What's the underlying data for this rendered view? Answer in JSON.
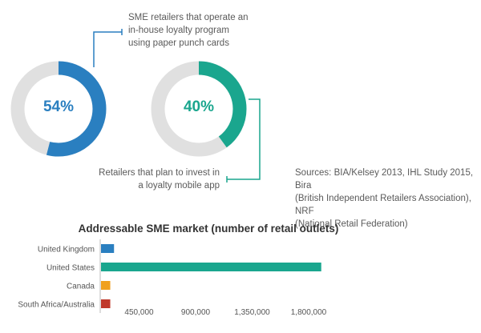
{
  "donuts": [
    {
      "value": 54,
      "label": "54%",
      "color": "#2a7fc0",
      "text_color": "#2a7fc0",
      "caption_lines": [
        "SME retailers that operate an",
        "in-house loyalty program",
        "using paper punch cards"
      ]
    },
    {
      "value": 40,
      "label": "40%",
      "color": "#1aa68e",
      "text_color": "#1aa68e",
      "caption_lines": [
        "Retailers that plan to invest in",
        "a loyalty mobile app"
      ]
    }
  ],
  "sources_lines": [
    "Sources: BIA/Kelsey 2013, IHL Study 2015, Bira",
    "(British Independent Retailers Association), NRF",
    "(National Retail Federation)"
  ],
  "track_color": "#e0e0e0",
  "chart_data": {
    "type": "bar",
    "orientation": "horizontal",
    "title": "Addressable SME market (number of retail outlets)",
    "categories": [
      "United Kingdom",
      "United States",
      "Canada",
      "South Africa/Australia"
    ],
    "values": [
      110000,
      1760000,
      80000,
      80000
    ],
    "colors": [
      "#2a7fc0",
      "#1aa68e",
      "#f0a01e",
      "#c0392b"
    ],
    "xticks": [
      450000,
      900000,
      1350000,
      1800000
    ],
    "xtick_labels": [
      "450,000",
      "900,000",
      "1,350,000",
      "1,800,000"
    ],
    "xlim": [
      0,
      1800000
    ],
    "grid": false
  }
}
